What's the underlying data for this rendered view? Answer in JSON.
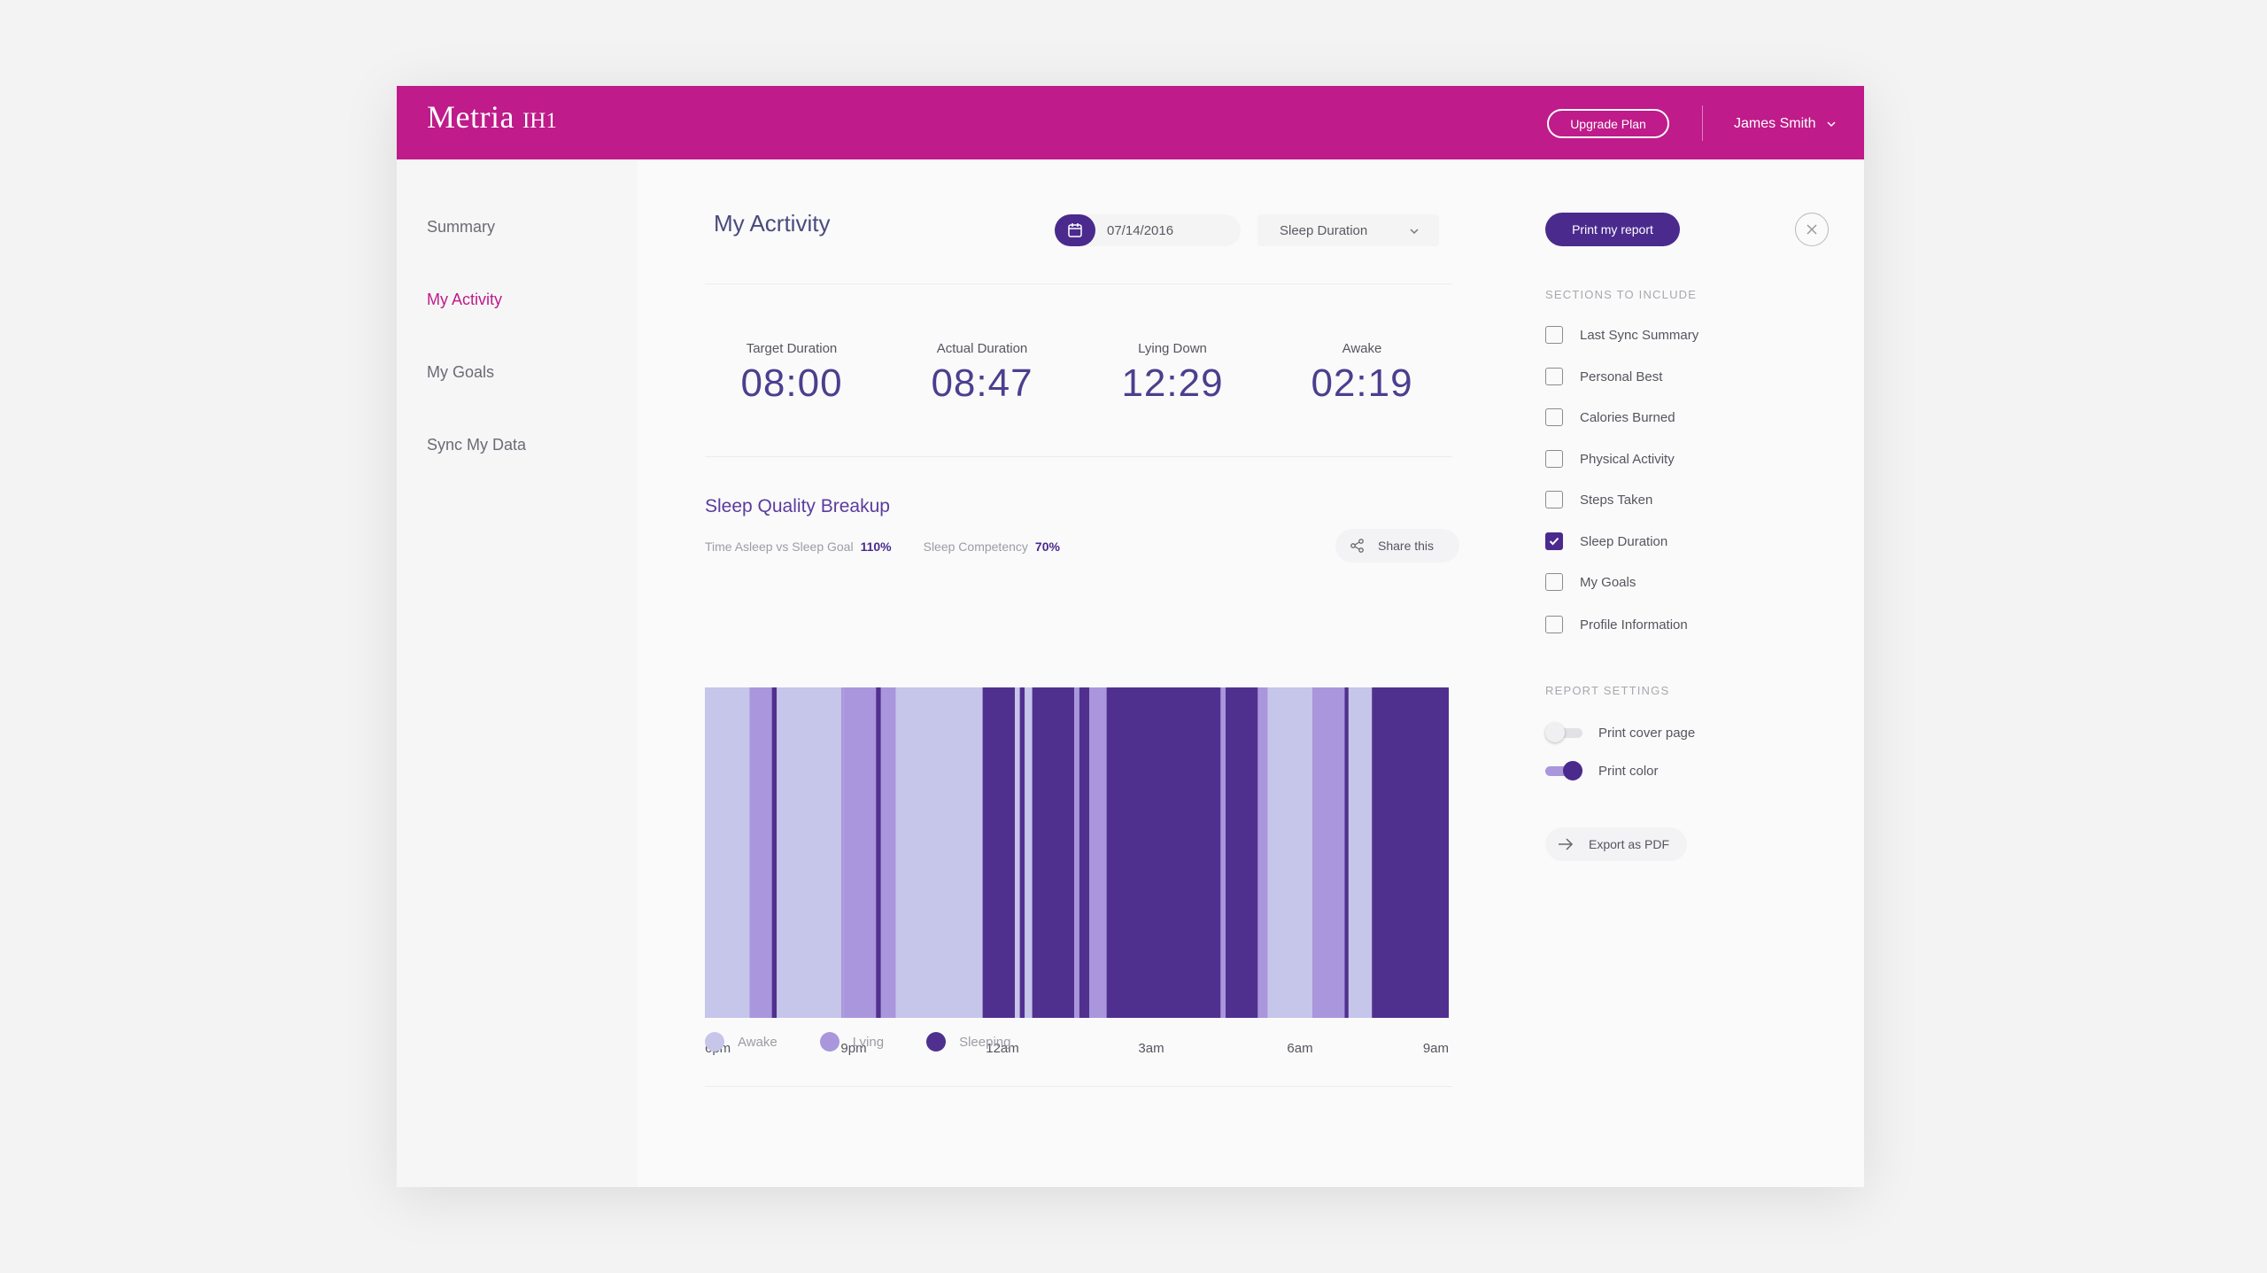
{
  "header": {
    "logo_main": "Metria",
    "logo_sub": "IH1",
    "upgrade_label": "Upgrade Plan",
    "user_name": "James Smith"
  },
  "sidebar": {
    "items": [
      {
        "label": "Summary",
        "active": false
      },
      {
        "label": "My Activity",
        "active": true
      },
      {
        "label": "My Goals",
        "active": false
      },
      {
        "label": "Sync My Data",
        "active": false
      }
    ]
  },
  "main": {
    "title": "My Acrtivity",
    "date": "07/14/2016",
    "metric_select": "Sleep Duration",
    "stats": [
      {
        "label": "Target Duration",
        "value": "08:00"
      },
      {
        "label": "Actual Duration",
        "value": "08:47"
      },
      {
        "label": "Lying Down",
        "value": "12:29"
      },
      {
        "label": "Awake",
        "value": "02:19"
      }
    ],
    "section_title": "Sleep Quality Breakup",
    "goal_label": "Time Asleep vs Sleep Goal",
    "goal_value": "110%",
    "competency_label": "Sleep Competency",
    "competency_value": "70%",
    "share_label": "Share this"
  },
  "chart_data": {
    "type": "bar",
    "title": "",
    "xlabel": "",
    "ylabel": "",
    "x_ticks": [
      "6pm",
      "9pm",
      "12am",
      "3am",
      "6am",
      "9am"
    ],
    "x_range_hours": [
      18,
      33
    ],
    "states": [
      "Awake",
      "Lying",
      "Sleeping"
    ],
    "colors": {
      "Awake": "#c6c5ea",
      "Lying": "#a996dc",
      "Sleeping": "#50308f"
    },
    "segments": [
      {
        "start": 18.0,
        "end": 18.9,
        "state": "Awake"
      },
      {
        "start": 18.9,
        "end": 19.35,
        "state": "Lying"
      },
      {
        "start": 19.35,
        "end": 19.45,
        "state": "Sleeping"
      },
      {
        "start": 19.45,
        "end": 20.75,
        "state": "Awake"
      },
      {
        "start": 20.75,
        "end": 20.8,
        "state": "Lying"
      },
      {
        "start": 20.8,
        "end": 21.45,
        "state": "Lying"
      },
      {
        "start": 21.45,
        "end": 21.55,
        "state": "Sleeping"
      },
      {
        "start": 21.55,
        "end": 21.85,
        "state": "Lying"
      },
      {
        "start": 21.85,
        "end": 23.6,
        "state": "Awake"
      },
      {
        "start": 23.6,
        "end": 24.25,
        "state": "Sleeping"
      },
      {
        "start": 24.25,
        "end": 24.35,
        "state": "Awake"
      },
      {
        "start": 24.35,
        "end": 24.45,
        "state": "Sleeping"
      },
      {
        "start": 24.45,
        "end": 24.6,
        "state": "Awake"
      },
      {
        "start": 24.6,
        "end": 25.45,
        "state": "Sleeping"
      },
      {
        "start": 25.45,
        "end": 25.55,
        "state": "Lying"
      },
      {
        "start": 25.55,
        "end": 25.75,
        "state": "Sleeping"
      },
      {
        "start": 25.75,
        "end": 26.1,
        "state": "Lying"
      },
      {
        "start": 26.1,
        "end": 28.4,
        "state": "Sleeping"
      },
      {
        "start": 28.4,
        "end": 28.5,
        "state": "Lying"
      },
      {
        "start": 28.5,
        "end": 29.15,
        "state": "Sleeping"
      },
      {
        "start": 29.15,
        "end": 29.35,
        "state": "Lying"
      },
      {
        "start": 29.35,
        "end": 30.25,
        "state": "Awake"
      },
      {
        "start": 30.25,
        "end": 30.9,
        "state": "Lying"
      },
      {
        "start": 30.9,
        "end": 30.98,
        "state": "Sleeping"
      },
      {
        "start": 30.98,
        "end": 31.45,
        "state": "Awake"
      },
      {
        "start": 31.45,
        "end": 33.0,
        "state": "Sleeping"
      }
    ]
  },
  "legend": [
    {
      "label": "Awake",
      "color": "#c6c5ea"
    },
    {
      "label": "Lying",
      "color": "#a996dc"
    },
    {
      "label": "Sleeping",
      "color": "#50308f"
    }
  ],
  "report_panel": {
    "print_label": "Print my report",
    "sections_heading": "SECTIONS TO INCLUDE",
    "sections": [
      {
        "label": "Last Sync Summary",
        "checked": false
      },
      {
        "label": "Personal Best",
        "checked": false
      },
      {
        "label": "Calories Burned",
        "checked": false
      },
      {
        "label": "Physical Activity",
        "checked": false
      },
      {
        "label": "Steps Taken",
        "checked": false
      },
      {
        "label": "Sleep Duration",
        "checked": true
      },
      {
        "label": "My Goals",
        "checked": false
      },
      {
        "label": "Profile Information",
        "checked": false
      }
    ],
    "settings_heading": "REPORT SETTINGS",
    "settings": [
      {
        "label": "Print cover page",
        "on": false
      },
      {
        "label": "Print color",
        "on": true
      }
    ],
    "export_label": "Export as PDF"
  }
}
